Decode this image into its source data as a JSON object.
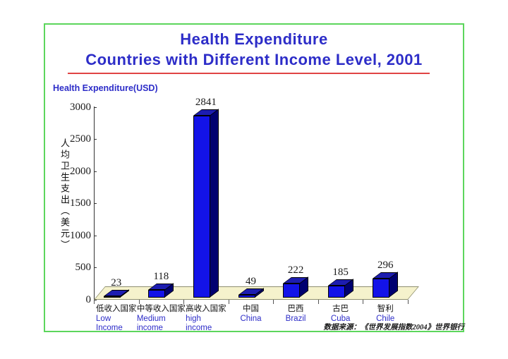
{
  "slide": {
    "title_line1": "Health Expenditure",
    "title_line2": "Countries with Different Income Level, 2001",
    "axis_top_label": "Health Expenditure(USD)",
    "y_axis_vertical_label": "人均卫生支出（美元）",
    "source_note": "数据来源：《世界发展指数2004》世界银行"
  },
  "colors": {
    "title_blue": "#2d2dc8",
    "underline_red": "#e04444",
    "border_green": "#5cd65c",
    "bar_front": "#1313e8",
    "bar_top": "#1d1db0",
    "bar_side": "#000070",
    "floor": "#f5f2cc"
  },
  "chart_data": {
    "type": "bar",
    "title": "Health Expenditure — Countries with Different Income Level, 2001",
    "ylabel": "人均卫生支出（美元）",
    "ylabel_en": "Health Expenditure(USD)",
    "ylim": [
      0,
      3000
    ],
    "yticks": [
      0,
      500,
      1000,
      1500,
      2000,
      2500,
      3000
    ],
    "grid": false,
    "legend": false,
    "style": "3d-bar",
    "categories_cn": [
      "低收入国家",
      "中等收入国家",
      "高收入国家",
      "中国",
      "巴西",
      "古巴",
      "智利"
    ],
    "categories_en": [
      [
        "Low",
        "Income"
      ],
      [
        "Medium",
        "income"
      ],
      [
        "high",
        "income"
      ],
      [
        "China"
      ],
      [
        "Brazil"
      ],
      [
        "Cuba"
      ],
      [
        "Chile"
      ]
    ],
    "values": [
      23,
      118,
      2841,
      49,
      222,
      185,
      296
    ]
  }
}
